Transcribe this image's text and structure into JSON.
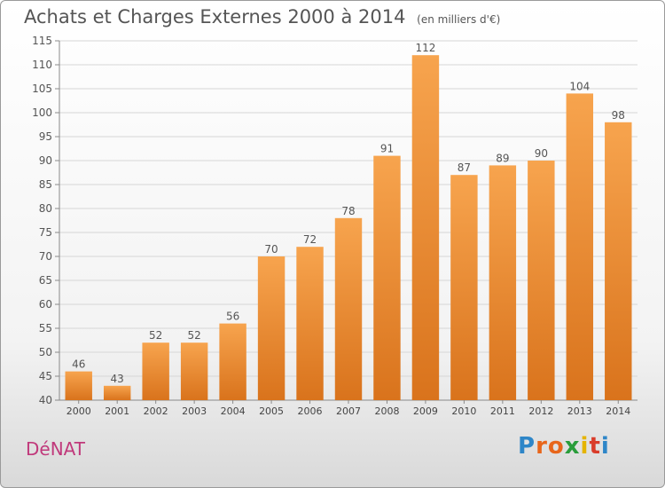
{
  "title": "Achats et Charges Externes 2000 à 2014",
  "unit_note": "(en milliers d'€)",
  "commune": "DéNAT",
  "logo": {
    "text": "Proxiti",
    "colors": [
      "#2e86c8",
      "#e8661b",
      "#e8661b",
      "#2a9d3b",
      "#e5b400",
      "#d93c2a",
      "#2e86c8"
    ]
  },
  "chart_data": {
    "type": "bar",
    "categories": [
      "2000",
      "2001",
      "2002",
      "2003",
      "2004",
      "2005",
      "2006",
      "2007",
      "2008",
      "2009",
      "2010",
      "2011",
      "2012",
      "2013",
      "2014"
    ],
    "values": [
      46,
      43,
      52,
      52,
      56,
      70,
      72,
      78,
      91,
      112,
      87,
      89,
      90,
      104,
      98
    ],
    "ylim": [
      40,
      115
    ],
    "ytick_step": 5,
    "grid": true,
    "bar_color": "#f08a2a"
  }
}
